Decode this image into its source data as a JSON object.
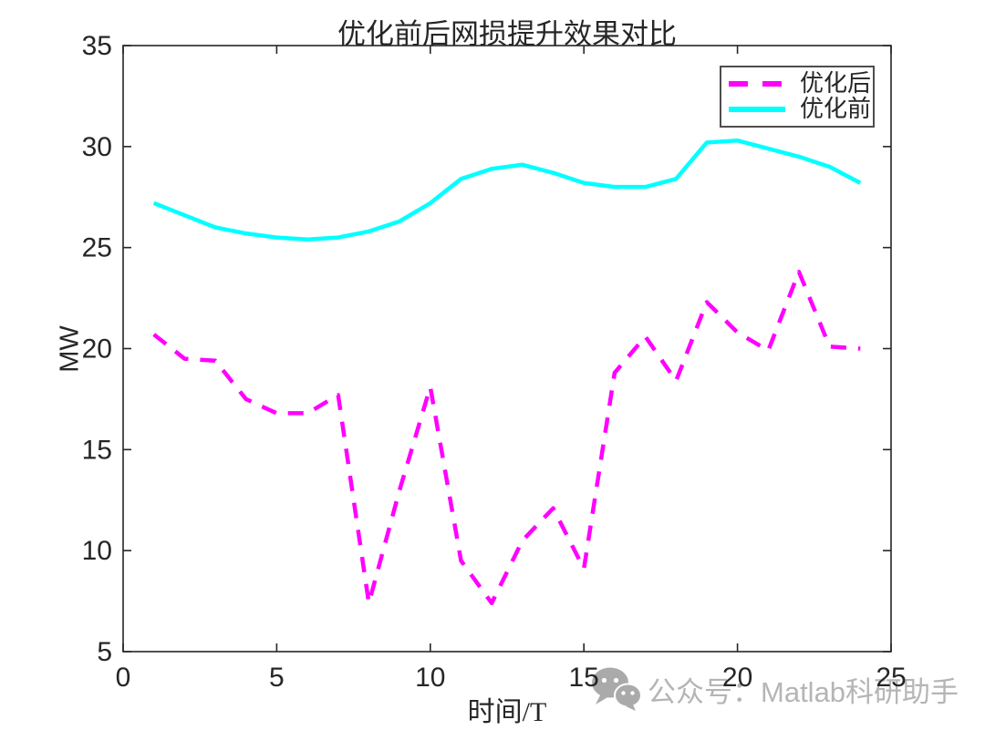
{
  "watermark": {
    "icon": "wechat-icon",
    "text": "公众号：Matlab科研助手"
  },
  "chart_data": {
    "type": "line",
    "title": "优化前后网损提升效果对比",
    "xlabel": "时间/T",
    "ylabel": "MW",
    "xlim": [
      0,
      25
    ],
    "ylim": [
      5,
      35
    ],
    "xticks": [
      0,
      5,
      10,
      15,
      20,
      25
    ],
    "yticks": [
      5,
      10,
      15,
      20,
      25,
      30,
      35
    ],
    "grid": false,
    "legend_position": "top-right",
    "x": [
      1,
      2,
      3,
      4,
      5,
      6,
      7,
      8,
      9,
      10,
      11,
      12,
      13,
      14,
      15,
      16,
      17,
      18,
      19,
      20,
      21,
      22,
      23,
      24
    ],
    "series": [
      {
        "name": "优化后",
        "color": "#FF00FF",
        "style": "dashed",
        "values": [
          20.7,
          19.5,
          19.4,
          17.5,
          16.8,
          16.8,
          17.7,
          7.4,
          13.0,
          18.1,
          9.5,
          7.4,
          10.5,
          12.1,
          9.1,
          18.8,
          20.6,
          18.4,
          22.3,
          20.8,
          19.9,
          23.8,
          20.1,
          20.0
        ]
      },
      {
        "name": "优化前",
        "color": "#00FFFF",
        "style": "solid",
        "values": [
          27.2,
          26.6,
          26.0,
          25.7,
          25.5,
          25.4,
          25.5,
          25.8,
          26.3,
          27.2,
          28.4,
          28.9,
          29.1,
          28.7,
          28.2,
          28.0,
          28.0,
          28.4,
          30.2,
          30.3,
          29.9,
          29.5,
          29.0,
          28.2
        ]
      }
    ],
    "axis_color": "#262626"
  }
}
